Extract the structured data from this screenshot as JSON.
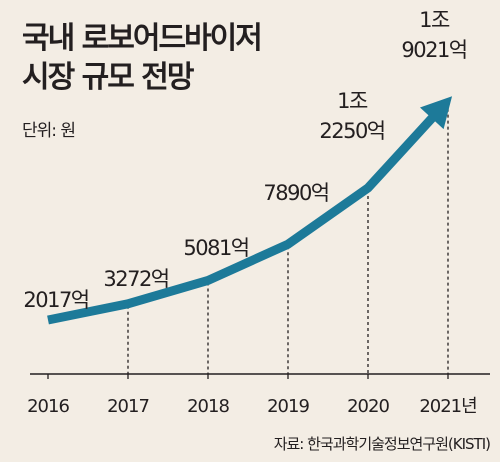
{
  "chart_data": {
    "type": "line",
    "title_lines": [
      "국내 로보어드바이저",
      "시장 규모 전망"
    ],
    "unit": "단위: 원",
    "source": "자료: 한국과학기술정보연구원(KISTI)",
    "categories": [
      "2016",
      "2017",
      "2018",
      "2019",
      "2020",
      "2021년"
    ],
    "values": [
      2017,
      3272,
      5081,
      7890,
      12250,
      19021
    ],
    "value_unit": "억 원",
    "data_labels": [
      [
        "2017억"
      ],
      [
        "3272억"
      ],
      [
        "5081억"
      ],
      [
        "7890억"
      ],
      [
        "1조",
        "2250억"
      ],
      [
        "1조",
        "9021억"
      ]
    ],
    "ylim": [
      0,
      20000
    ],
    "grid": false,
    "drop_lines": true,
    "end_arrow": true,
    "line_color": "#1d7a99",
    "background_color": "#f3ede4"
  }
}
